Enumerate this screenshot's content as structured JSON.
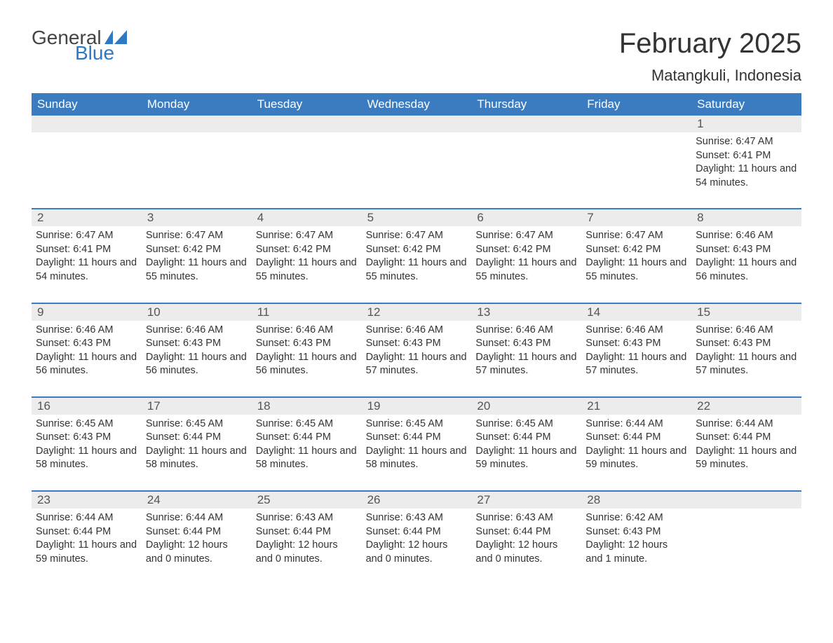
{
  "logo": {
    "text1": "General",
    "text2": "Blue",
    "icon_color": "#2f79c2"
  },
  "title": "February 2025",
  "location": "Matangkuli, Indonesia",
  "colors": {
    "header_bg": "#3b7bbf",
    "header_text": "#ffffff",
    "row_border": "#3b7bbf",
    "daynum_bg": "#ececec",
    "text": "#333333",
    "page_bg": "#ffffff"
  },
  "weekdays": [
    "Sunday",
    "Monday",
    "Tuesday",
    "Wednesday",
    "Thursday",
    "Friday",
    "Saturday"
  ],
  "labels": {
    "sunrise": "Sunrise:",
    "sunset": "Sunset:",
    "daylight": "Daylight:"
  },
  "weeks": [
    [
      null,
      null,
      null,
      null,
      null,
      null,
      {
        "n": "1",
        "sunrise": "6:47 AM",
        "sunset": "6:41 PM",
        "daylight": "11 hours and 54 minutes."
      }
    ],
    [
      {
        "n": "2",
        "sunrise": "6:47 AM",
        "sunset": "6:41 PM",
        "daylight": "11 hours and 54 minutes."
      },
      {
        "n": "3",
        "sunrise": "6:47 AM",
        "sunset": "6:42 PM",
        "daylight": "11 hours and 55 minutes."
      },
      {
        "n": "4",
        "sunrise": "6:47 AM",
        "sunset": "6:42 PM",
        "daylight": "11 hours and 55 minutes."
      },
      {
        "n": "5",
        "sunrise": "6:47 AM",
        "sunset": "6:42 PM",
        "daylight": "11 hours and 55 minutes."
      },
      {
        "n": "6",
        "sunrise": "6:47 AM",
        "sunset": "6:42 PM",
        "daylight": "11 hours and 55 minutes."
      },
      {
        "n": "7",
        "sunrise": "6:47 AM",
        "sunset": "6:42 PM",
        "daylight": "11 hours and 55 minutes."
      },
      {
        "n": "8",
        "sunrise": "6:46 AM",
        "sunset": "6:43 PM",
        "daylight": "11 hours and 56 minutes."
      }
    ],
    [
      {
        "n": "9",
        "sunrise": "6:46 AM",
        "sunset": "6:43 PM",
        "daylight": "11 hours and 56 minutes."
      },
      {
        "n": "10",
        "sunrise": "6:46 AM",
        "sunset": "6:43 PM",
        "daylight": "11 hours and 56 minutes."
      },
      {
        "n": "11",
        "sunrise": "6:46 AM",
        "sunset": "6:43 PM",
        "daylight": "11 hours and 56 minutes."
      },
      {
        "n": "12",
        "sunrise": "6:46 AM",
        "sunset": "6:43 PM",
        "daylight": "11 hours and 57 minutes."
      },
      {
        "n": "13",
        "sunrise": "6:46 AM",
        "sunset": "6:43 PM",
        "daylight": "11 hours and 57 minutes."
      },
      {
        "n": "14",
        "sunrise": "6:46 AM",
        "sunset": "6:43 PM",
        "daylight": "11 hours and 57 minutes."
      },
      {
        "n": "15",
        "sunrise": "6:46 AM",
        "sunset": "6:43 PM",
        "daylight": "11 hours and 57 minutes."
      }
    ],
    [
      {
        "n": "16",
        "sunrise": "6:45 AM",
        "sunset": "6:43 PM",
        "daylight": "11 hours and 58 minutes."
      },
      {
        "n": "17",
        "sunrise": "6:45 AM",
        "sunset": "6:44 PM",
        "daylight": "11 hours and 58 minutes."
      },
      {
        "n": "18",
        "sunrise": "6:45 AM",
        "sunset": "6:44 PM",
        "daylight": "11 hours and 58 minutes."
      },
      {
        "n": "19",
        "sunrise": "6:45 AM",
        "sunset": "6:44 PM",
        "daylight": "11 hours and 58 minutes."
      },
      {
        "n": "20",
        "sunrise": "6:45 AM",
        "sunset": "6:44 PM",
        "daylight": "11 hours and 59 minutes."
      },
      {
        "n": "21",
        "sunrise": "6:44 AM",
        "sunset": "6:44 PM",
        "daylight": "11 hours and 59 minutes."
      },
      {
        "n": "22",
        "sunrise": "6:44 AM",
        "sunset": "6:44 PM",
        "daylight": "11 hours and 59 minutes."
      }
    ],
    [
      {
        "n": "23",
        "sunrise": "6:44 AM",
        "sunset": "6:44 PM",
        "daylight": "11 hours and 59 minutes."
      },
      {
        "n": "24",
        "sunrise": "6:44 AM",
        "sunset": "6:44 PM",
        "daylight": "12 hours and 0 minutes."
      },
      {
        "n": "25",
        "sunrise": "6:43 AM",
        "sunset": "6:44 PM",
        "daylight": "12 hours and 0 minutes."
      },
      {
        "n": "26",
        "sunrise": "6:43 AM",
        "sunset": "6:44 PM",
        "daylight": "12 hours and 0 minutes."
      },
      {
        "n": "27",
        "sunrise": "6:43 AM",
        "sunset": "6:44 PM",
        "daylight": "12 hours and 0 minutes."
      },
      {
        "n": "28",
        "sunrise": "6:42 AM",
        "sunset": "6:43 PM",
        "daylight": "12 hours and 1 minute."
      },
      null
    ]
  ]
}
